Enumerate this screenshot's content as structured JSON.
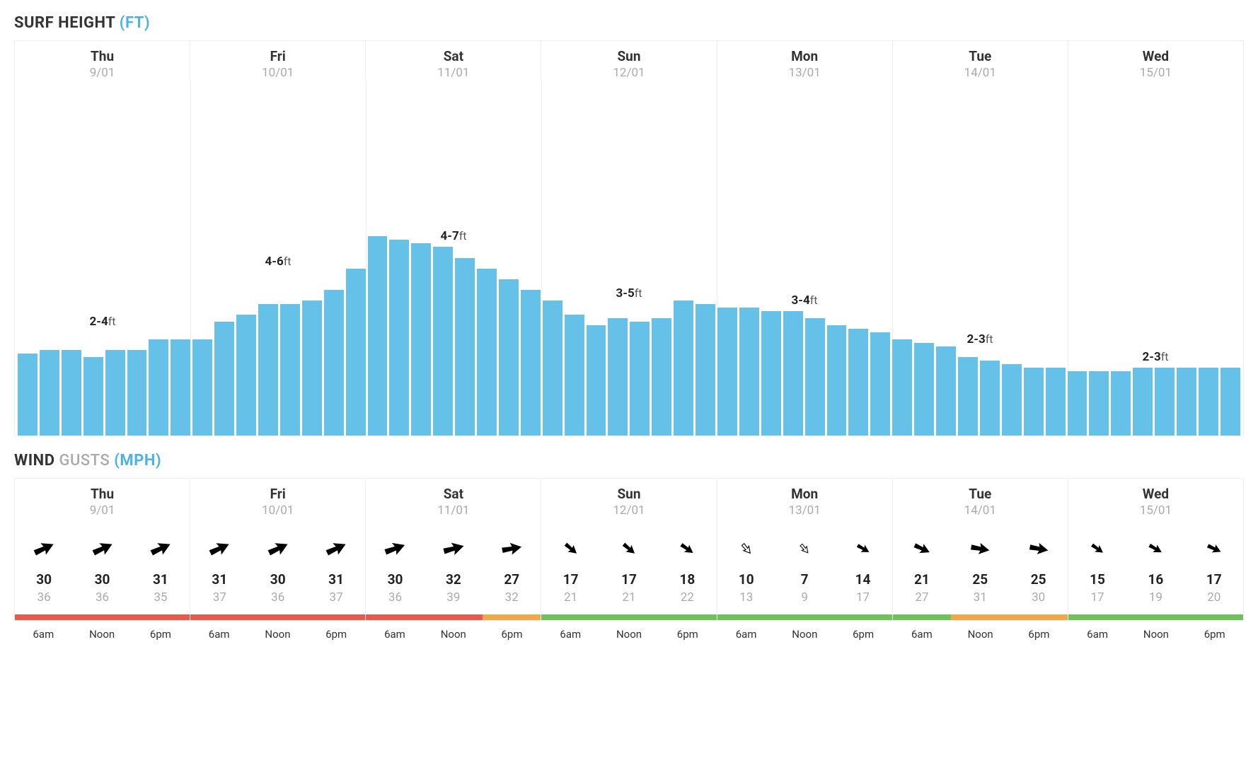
{
  "surfTitle": {
    "main": "SURF HEIGHT ",
    "unit": "(FT)"
  },
  "windTitle": {
    "main": "WIND ",
    "sub": "GUSTS ",
    "unit": "(MPH)"
  },
  "colors": {
    "bar": "#65c1e8",
    "grid": "#eeeeee",
    "textDark": "#333333",
    "textGrey": "#aaaaaa",
    "accentBlue": "#4db3e6",
    "qualityRed": "#e85b4b",
    "qualityOrange": "#f0a94a",
    "qualityGreen": "#6fc15c"
  },
  "days": [
    {
      "name": "Thu",
      "date": "9/01",
      "surfLabel": "2-4",
      "labelBottomPct": 30
    },
    {
      "name": "Fri",
      "date": "10/01",
      "surfLabel": "4-6",
      "labelBottomPct": 47
    },
    {
      "name": "Sat",
      "date": "11/01",
      "surfLabel": "4-7",
      "labelBottomPct": 54
    },
    {
      "name": "Sun",
      "date": "12/01",
      "surfLabel": "3-5",
      "labelBottomPct": 38
    },
    {
      "name": "Mon",
      "date": "13/01",
      "surfLabel": "3-4",
      "labelBottomPct": 36
    },
    {
      "name": "Tue",
      "date": "14/01",
      "surfLabel": "2-3",
      "labelBottomPct": 25
    },
    {
      "name": "Wed",
      "date": "15/01",
      "surfLabel": "2-3",
      "labelBottomPct": 20
    }
  ],
  "surfChart": {
    "maxHeightPct": 60,
    "barHeightsPct": [
      23,
      24,
      24,
      22,
      24,
      24,
      27,
      27,
      27,
      32,
      34,
      37,
      37,
      38,
      41,
      47,
      56,
      55,
      54,
      53,
      50,
      47,
      44,
      41,
      38,
      34,
      31,
      33,
      32,
      33,
      38,
      37,
      36,
      36,
      35,
      35,
      33,
      31,
      30,
      29,
      27,
      26,
      25,
      22,
      21,
      20,
      19,
      19,
      18,
      18,
      18,
      19,
      19,
      19,
      19,
      19
    ]
  },
  "wind": {
    "timeLabels": [
      "6am",
      "Noon",
      "6pm"
    ],
    "days": [
      {
        "slots": [
          {
            "dir": 65,
            "scale": 1.0,
            "style": "solid",
            "speed": "30",
            "gust": "36",
            "quality": "red"
          },
          {
            "dir": 65,
            "scale": 1.0,
            "style": "solid",
            "speed": "30",
            "gust": "36",
            "quality": "red"
          },
          {
            "dir": 65,
            "scale": 1.0,
            "style": "solid",
            "speed": "31",
            "gust": "35",
            "quality": "red"
          }
        ]
      },
      {
        "slots": [
          {
            "dir": 65,
            "scale": 1.0,
            "style": "solid",
            "speed": "31",
            "gust": "37",
            "quality": "red"
          },
          {
            "dir": 65,
            "scale": 1.0,
            "style": "solid",
            "speed": "30",
            "gust": "36",
            "quality": "red"
          },
          {
            "dir": 65,
            "scale": 1.0,
            "style": "solid",
            "speed": "31",
            "gust": "37",
            "quality": "red"
          }
        ]
      },
      {
        "slots": [
          {
            "dir": 70,
            "scale": 1.0,
            "style": "solid",
            "speed": "30",
            "gust": "36",
            "quality": "red"
          },
          {
            "dir": 75,
            "scale": 1.0,
            "style": "solid",
            "speed": "32",
            "gust": "39",
            "quality": "red"
          },
          {
            "dir": 80,
            "scale": 0.95,
            "style": "solid",
            "speed": "27",
            "gust": "32",
            "quality": "orange"
          }
        ]
      },
      {
        "slots": [
          {
            "dir": 130,
            "scale": 0.7,
            "style": "solid",
            "speed": "17",
            "gust": "21",
            "quality": "green"
          },
          {
            "dir": 130,
            "scale": 0.7,
            "style": "solid",
            "speed": "17",
            "gust": "21",
            "quality": "green"
          },
          {
            "dir": 125,
            "scale": 0.7,
            "style": "solid",
            "speed": "18",
            "gust": "22",
            "quality": "green"
          }
        ]
      },
      {
        "slots": [
          {
            "dir": 140,
            "scale": 0.55,
            "style": "outline",
            "speed": "10",
            "gust": "13",
            "quality": "green"
          },
          {
            "dir": 140,
            "scale": 0.5,
            "style": "outline",
            "speed": "7",
            "gust": "9",
            "quality": "green"
          },
          {
            "dir": 120,
            "scale": 0.65,
            "style": "solid",
            "speed": "14",
            "gust": "17",
            "quality": "green"
          }
        ]
      },
      {
        "slots": [
          {
            "dir": 115,
            "scale": 0.8,
            "style": "solid",
            "speed": "21",
            "gust": "27",
            "quality": "green"
          },
          {
            "dir": 100,
            "scale": 0.9,
            "style": "solid",
            "speed": "25",
            "gust": "31",
            "quality": "orange"
          },
          {
            "dir": 100,
            "scale": 0.9,
            "style": "solid",
            "speed": "25",
            "gust": "30",
            "quality": "orange"
          }
        ]
      },
      {
        "slots": [
          {
            "dir": 125,
            "scale": 0.65,
            "style": "solid",
            "speed": "15",
            "gust": "17",
            "quality": "green"
          },
          {
            "dir": 120,
            "scale": 0.68,
            "style": "solid",
            "speed": "16",
            "gust": "19",
            "quality": "green"
          },
          {
            "dir": 115,
            "scale": 0.7,
            "style": "solid",
            "speed": "17",
            "gust": "20",
            "quality": "green"
          }
        ]
      }
    ]
  }
}
